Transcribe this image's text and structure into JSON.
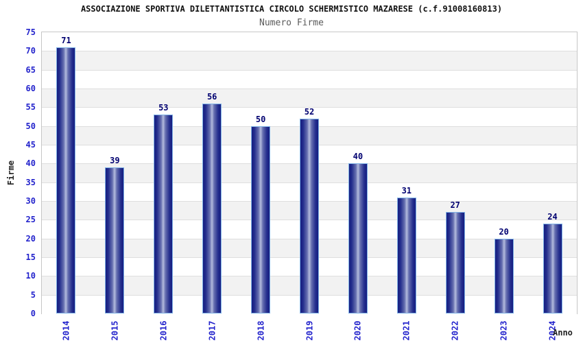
{
  "chart_data": {
    "type": "bar",
    "title": "ASSOCIAZIONE SPORTIVA DILETTANTISTICA CIRCOLO SCHERMISTICO MAZARESE (c.f.91008160813)",
    "subtitle": "Numero Firme",
    "xlabel": "Anno",
    "ylabel": "Firme",
    "categories": [
      "2014",
      "2015",
      "2016",
      "2017",
      "2018",
      "2019",
      "2020",
      "2021",
      "2022",
      "2023",
      "2024"
    ],
    "values": [
      71,
      39,
      53,
      56,
      50,
      52,
      40,
      31,
      27,
      20,
      24
    ],
    "ylim": [
      0,
      75
    ],
    "yticks": [
      0,
      5,
      10,
      15,
      20,
      25,
      30,
      35,
      40,
      45,
      50,
      55,
      60,
      65,
      70,
      75
    ],
    "grid": "horizontal-alternating-bands",
    "legend": "none",
    "value_labels_shown": true
  },
  "colors": {
    "title_text": "#111111",
    "subtitle_text": "#5a5a5a",
    "tick_label": "#2323cc",
    "value_label": "#000070",
    "axis_title": "#222222",
    "band_white": "#ffffff",
    "band_gray": "#f2f2f2",
    "grid_line": "#dedede",
    "plot_border": "#c6c6c6",
    "bar_edge_dark": "#161e80",
    "bar_dark": "#232d8d",
    "bar_mid": "#6770b0",
    "bar_light": "#b4bcde",
    "bar_border": "#7fb2e6"
  }
}
